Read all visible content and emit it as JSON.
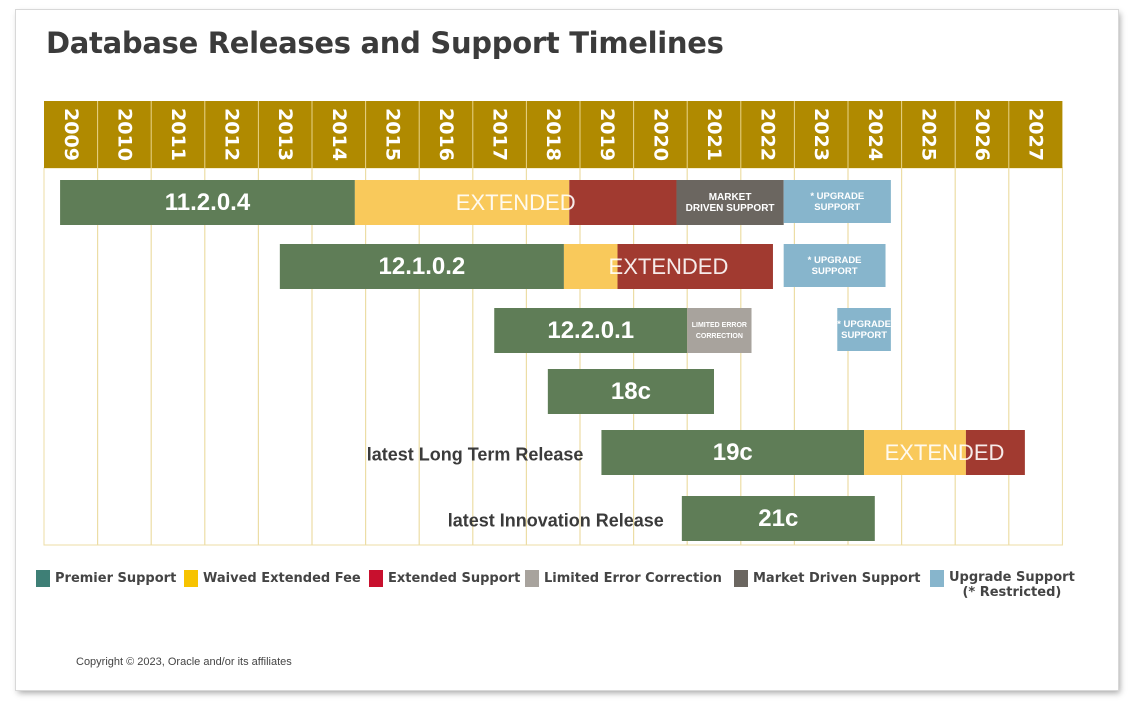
{
  "title": "Database Releases and Support Timelines",
  "copyright": "Copyright © 2023, Oracle and/or its affiliates",
  "colors": {
    "header": "#b08a00",
    "premier": "#5f7d57",
    "waived": "#f9c95b",
    "extended": "#a13a30",
    "limited": "#a8a39d",
    "market": "#6b6660",
    "upgrade": "#87b5cc",
    "grid": "#ecdda5"
  },
  "chart_data": {
    "type": "timeline",
    "years": [
      "2009",
      "2010",
      "2011",
      "2012",
      "2013",
      "2014",
      "2015",
      "2016",
      "2017",
      "2018",
      "2019",
      "2020",
      "2021",
      "2022",
      "2023",
      "2024",
      "2025",
      "2026",
      "2027"
    ],
    "releases": [
      {
        "name": "11.2.0.4",
        "segments": [
          {
            "kind": "premier",
            "start": 2009.3,
            "end": 2014.8,
            "label": "11.2.0.4"
          },
          {
            "kind": "waived",
            "start": 2014.8,
            "end": 2018.8,
            "label": ""
          },
          {
            "kind": "extended",
            "start": 2018.8,
            "end": 2020.8,
            "label": ""
          },
          {
            "kind": "market",
            "start": 2020.8,
            "end": 2022.8,
            "label": "MARKET DRIVEN SUPPORT"
          },
          {
            "kind": "upgrade",
            "start": 2022.8,
            "end": 2024.8,
            "label": "* UPGRADE SUPPORT"
          }
        ],
        "overlay": {
          "label": "EXTENDED",
          "start": 2014.8,
          "end": 2020.8
        }
      },
      {
        "name": "12.1.0.2",
        "segments": [
          {
            "kind": "premier",
            "start": 2013.4,
            "end": 2018.7,
            "label": "12.1.0.2"
          },
          {
            "kind": "waived",
            "start": 2018.7,
            "end": 2019.7,
            "label": ""
          },
          {
            "kind": "extended",
            "start": 2019.7,
            "end": 2022.6,
            "label": ""
          },
          {
            "kind": "upgrade",
            "start": 2022.8,
            "end": 2024.7,
            "label": "* UPGRADE SUPPORT"
          }
        ],
        "overlay": {
          "label": "EXTENDED",
          "start": 2018.7,
          "end": 2022.6
        }
      },
      {
        "name": "12.2.0.1",
        "segments": [
          {
            "kind": "premier",
            "start": 2017.4,
            "end": 2021.0,
            "label": "12.2.0.1"
          },
          {
            "kind": "limited",
            "start": 2021.0,
            "end": 2022.2,
            "label": "LIMITED ERROR CORRECTION"
          },
          {
            "kind": "upgrade",
            "start": 2023.8,
            "end": 2024.8,
            "label": "* UPGRADE SUPPORT"
          }
        ]
      },
      {
        "name": "18c",
        "segments": [
          {
            "kind": "premier",
            "start": 2018.4,
            "end": 2021.5,
            "label": "18c"
          }
        ]
      },
      {
        "name": "19c",
        "side_label": "latest Long Term Release",
        "segments": [
          {
            "kind": "premier",
            "start": 2019.4,
            "end": 2024.3,
            "label": "19c"
          },
          {
            "kind": "waived",
            "start": 2024.3,
            "end": 2026.2,
            "label": ""
          },
          {
            "kind": "extended",
            "start": 2026.2,
            "end": 2027.3,
            "label": ""
          }
        ],
        "overlay": {
          "label": "EXTENDED",
          "start": 2024.3,
          "end": 2027.3
        }
      },
      {
        "name": "21c",
        "side_label": "latest Innovation Release",
        "segments": [
          {
            "kind": "premier",
            "start": 2020.9,
            "end": 2024.5,
            "label": "21c"
          }
        ]
      }
    ],
    "legend": [
      {
        "kind": "premier",
        "label": "Premier Support"
      },
      {
        "kind": "waived",
        "label": "Waived Extended Fee"
      },
      {
        "kind": "extended",
        "label": "Extended Support"
      },
      {
        "kind": "limited",
        "label": "Limited Error Correction"
      },
      {
        "kind": "market",
        "label": "Market Driven Support"
      },
      {
        "kind": "upgrade",
        "label": "Upgrade Support",
        "note": "(* Restricted)"
      }
    ]
  }
}
